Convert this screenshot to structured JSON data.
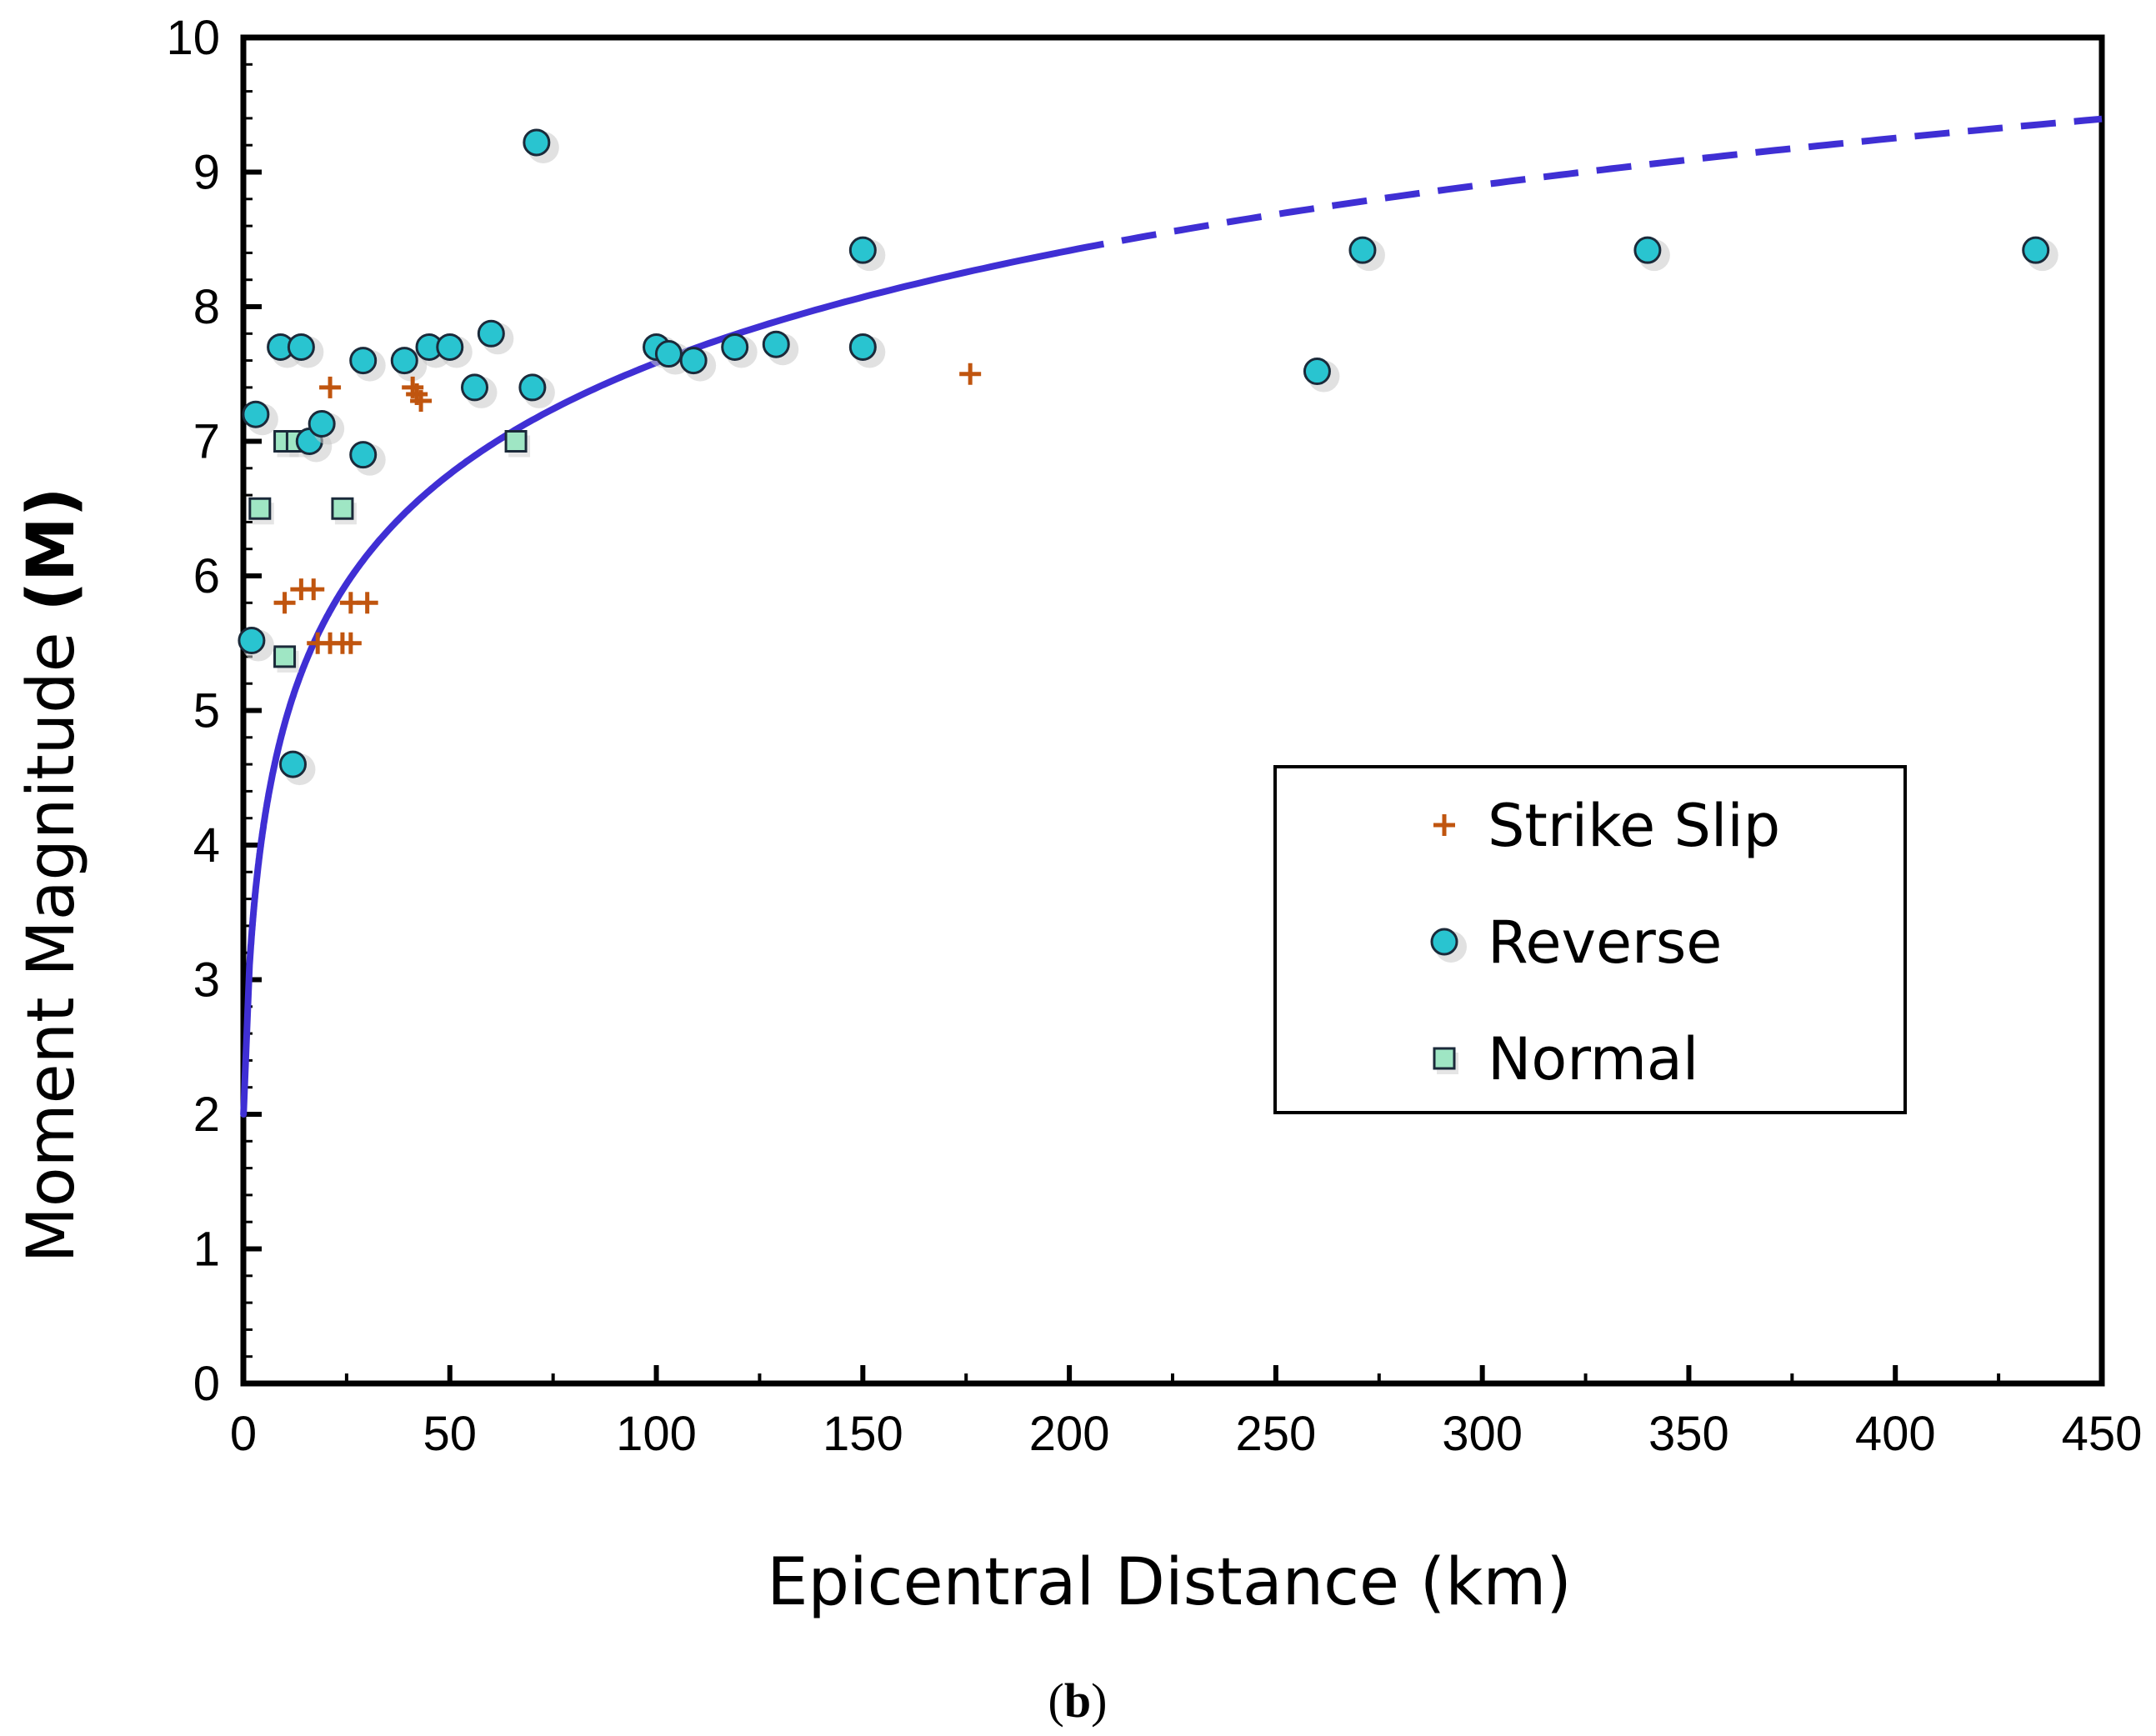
{
  "chart_data": {
    "type": "scatter",
    "xlabel": "Epicentral Distance (km)",
    "ylabel_main": "Moment Magnitude ",
    "ylabel_bold": "(M)",
    "xlim": [
      0,
      450
    ],
    "ylim": [
      0,
      10
    ],
    "x_ticks": [
      "0",
      "50",
      "100",
      "150",
      "200",
      "250",
      "300",
      "350",
      "400",
      "450"
    ],
    "y_ticks": [
      "0",
      "1",
      "2",
      "3",
      "4",
      "5",
      "6",
      "7",
      "8",
      "9",
      "10"
    ],
    "legend_position": "center-right",
    "caption_open": "(",
    "caption_letter": "b",
    "caption_close": ")",
    "series": [
      {
        "name": "Strike Slip",
        "marker": "plus",
        "color": "#c0550f",
        "points": [
          [
            10,
            5.8
          ],
          [
            14,
            5.9
          ],
          [
            17,
            5.9
          ],
          [
            18,
            5.5
          ],
          [
            21,
            5.5
          ],
          [
            24,
            5.5
          ],
          [
            26,
            5.5
          ],
          [
            26,
            5.8
          ],
          [
            30,
            5.8
          ],
          [
            21,
            7.4
          ],
          [
            41,
            7.4
          ],
          [
            42,
            7.35
          ],
          [
            43,
            7.3
          ],
          [
            176,
            7.5
          ]
        ]
      },
      {
        "name": "Reverse",
        "marker": "circle",
        "color": "#29c4d0",
        "points": [
          [
            2,
            5.52
          ],
          [
            3,
            7.2
          ],
          [
            9,
            7.7
          ],
          [
            14,
            7.7
          ],
          [
            16,
            7.0
          ],
          [
            19,
            7.13
          ],
          [
            12,
            4.6
          ],
          [
            29,
            7.6
          ],
          [
            29,
            6.9
          ],
          [
            39,
            7.6
          ],
          [
            45,
            7.7
          ],
          [
            50,
            7.7
          ],
          [
            56,
            7.4
          ],
          [
            60,
            7.8
          ],
          [
            70,
            7.4
          ],
          [
            71,
            9.22
          ],
          [
            100,
            7.7
          ],
          [
            103,
            7.65
          ],
          [
            109,
            7.6
          ],
          [
            119,
            7.7
          ],
          [
            129,
            7.72
          ],
          [
            150,
            7.7
          ],
          [
            150,
            8.42
          ],
          [
            260,
            7.52
          ],
          [
            271,
            8.42
          ],
          [
            340,
            8.42
          ],
          [
            434,
            8.42
          ]
        ]
      },
      {
        "name": "Normal",
        "marker": "square",
        "color": "#9fe6c4",
        "points": [
          [
            4,
            6.5
          ],
          [
            10,
            7.0
          ],
          [
            13,
            7.0
          ],
          [
            10,
            5.4
          ],
          [
            24,
            6.5
          ],
          [
            66,
            7.0
          ]
        ]
      }
    ],
    "curve": {
      "name": "fit",
      "color": "#3f2fd4",
      "solid_x_range": [
        1.5,
        200
      ],
      "dashed_x_range": [
        200,
        450
      ],
      "formula": "M = 2.0 + 1.21 * ln(1 + R / 1.0) approx"
    }
  }
}
